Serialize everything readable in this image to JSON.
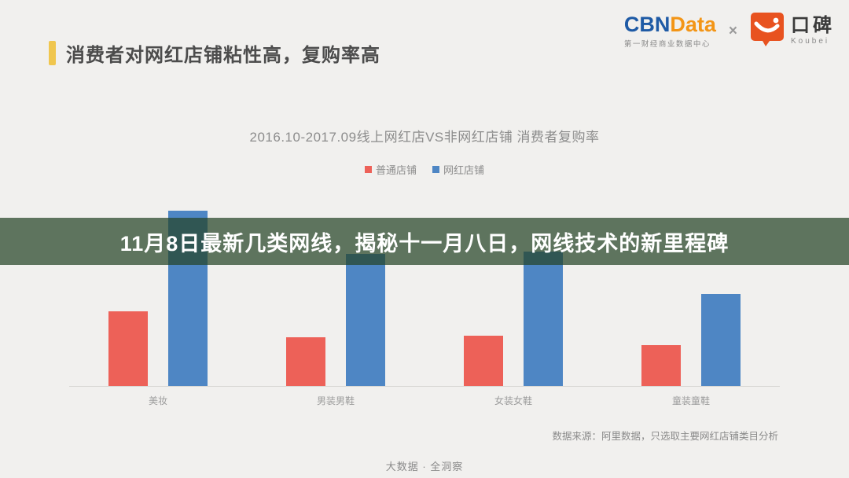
{
  "page": {
    "background": "#f1f0ee",
    "section_title": "消费者对网红店铺粘性高，复购率高",
    "accent_color": "#f0c64e"
  },
  "header": {
    "cbndata": {
      "name_part1": "CBN",
      "name_part2": "Data",
      "color_part1": "#1e5aa5",
      "color_part2": "#f39516",
      "subtitle": "第一财经商业数据中心"
    },
    "separator": "×",
    "koubei": {
      "brand_color": "#e8521f",
      "name_cn": "口碑",
      "name_en": "Koubei"
    }
  },
  "overlay_banner": {
    "text": "11月8日最新几类网线，揭秘十一月八日，网线技术的新里程碑",
    "background": "rgba(38,68,39,0.72)",
    "text_color": "#ffffff"
  },
  "chart_data": {
    "type": "bar",
    "title": "2016.10-2017.09线上网红店VS非网红店铺 消费者复购率",
    "categories": [
      "美妆",
      "男装男鞋",
      "女装女鞋",
      "童装童鞋"
    ],
    "series": [
      {
        "name": "普通店铺",
        "color": "#ed6158",
        "values": [
          95,
          62,
          64,
          52
        ]
      },
      {
        "name": "网红店铺",
        "color": "#4e86c4",
        "values": [
          223,
          168,
          171,
          117
        ]
      }
    ],
    "value_unit": "relative bar height in px (source chart shows no y-axis labels or gridlines)",
    "ylim": [
      0,
      240
    ],
    "grid": false,
    "legend_position": "top-center",
    "xlabel": "",
    "ylabel": ""
  },
  "footer": {
    "source_note": "数据来源：阿里数据，只选取主要网红店铺类目分析",
    "tagline": "大数据 · 全洞察"
  }
}
